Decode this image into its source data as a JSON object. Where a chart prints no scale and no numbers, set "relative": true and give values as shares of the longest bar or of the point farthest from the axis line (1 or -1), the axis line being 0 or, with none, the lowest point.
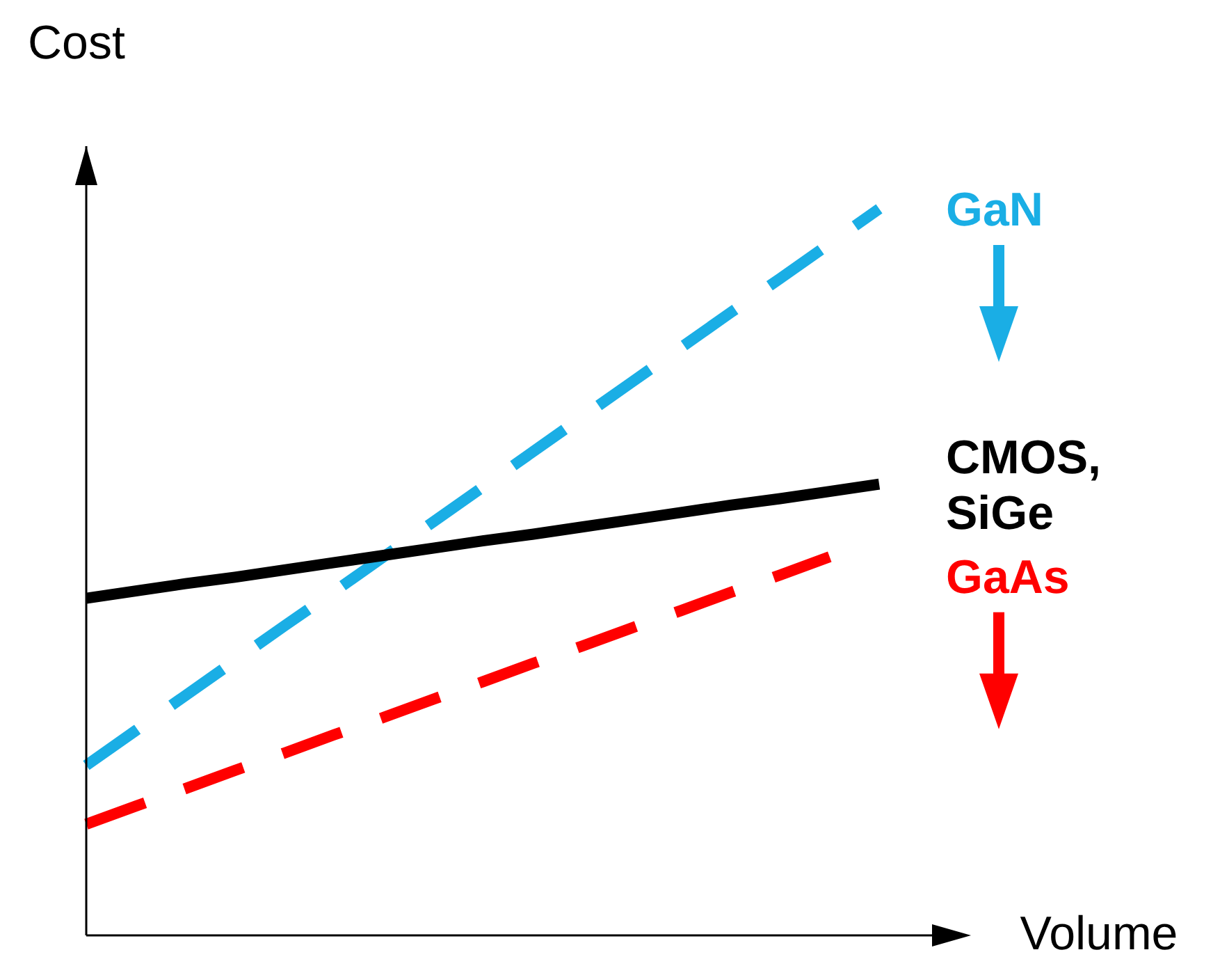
{
  "chart_data": {
    "type": "line",
    "relative": true,
    "xlabel": "Volume",
    "ylabel": "Cost",
    "categories": [
      null,
      null,
      null,
      null,
      null,
      null,
      null,
      null,
      null,
      null,
      null,
      null,
      null,
      null,
      null,
      null,
      null
    ],
    "legend": false,
    "marker": "none",
    "series": [
      {
        "name": "GaN",
        "color": "#1aaee5",
        "line_style": "dashed",
        "values": [
          0.234,
          0.282,
          0.33,
          0.378,
          0.426,
          0.473,
          0.521,
          0.569,
          0.617,
          0.665,
          0.713,
          0.761,
          0.809,
          0.857,
          0.904,
          0.952,
          1
        ]
      },
      {
        "name": "CMOS, SiGe",
        "color": "#000000",
        "line_style": "solid",
        "values": [
          0.464,
          0.474,
          0.484,
          0.493,
          0.503,
          0.513,
          0.523,
          0.533,
          0.543,
          0.552,
          0.562,
          0.572,
          0.582,
          0.592,
          0.601,
          0.611,
          0.621
        ]
      },
      {
        "name": "GaAs",
        "color": "#ff0000",
        "line_style": "dashed",
        "values": [
          0.153,
          0.178,
          0.202,
          0.227,
          0.251,
          0.276,
          0.3,
          0.325,
          0.349,
          0.374,
          0.398,
          0.423,
          0.447,
          0.472,
          0.496,
          0.521,
          null
        ]
      }
    ]
  }
}
